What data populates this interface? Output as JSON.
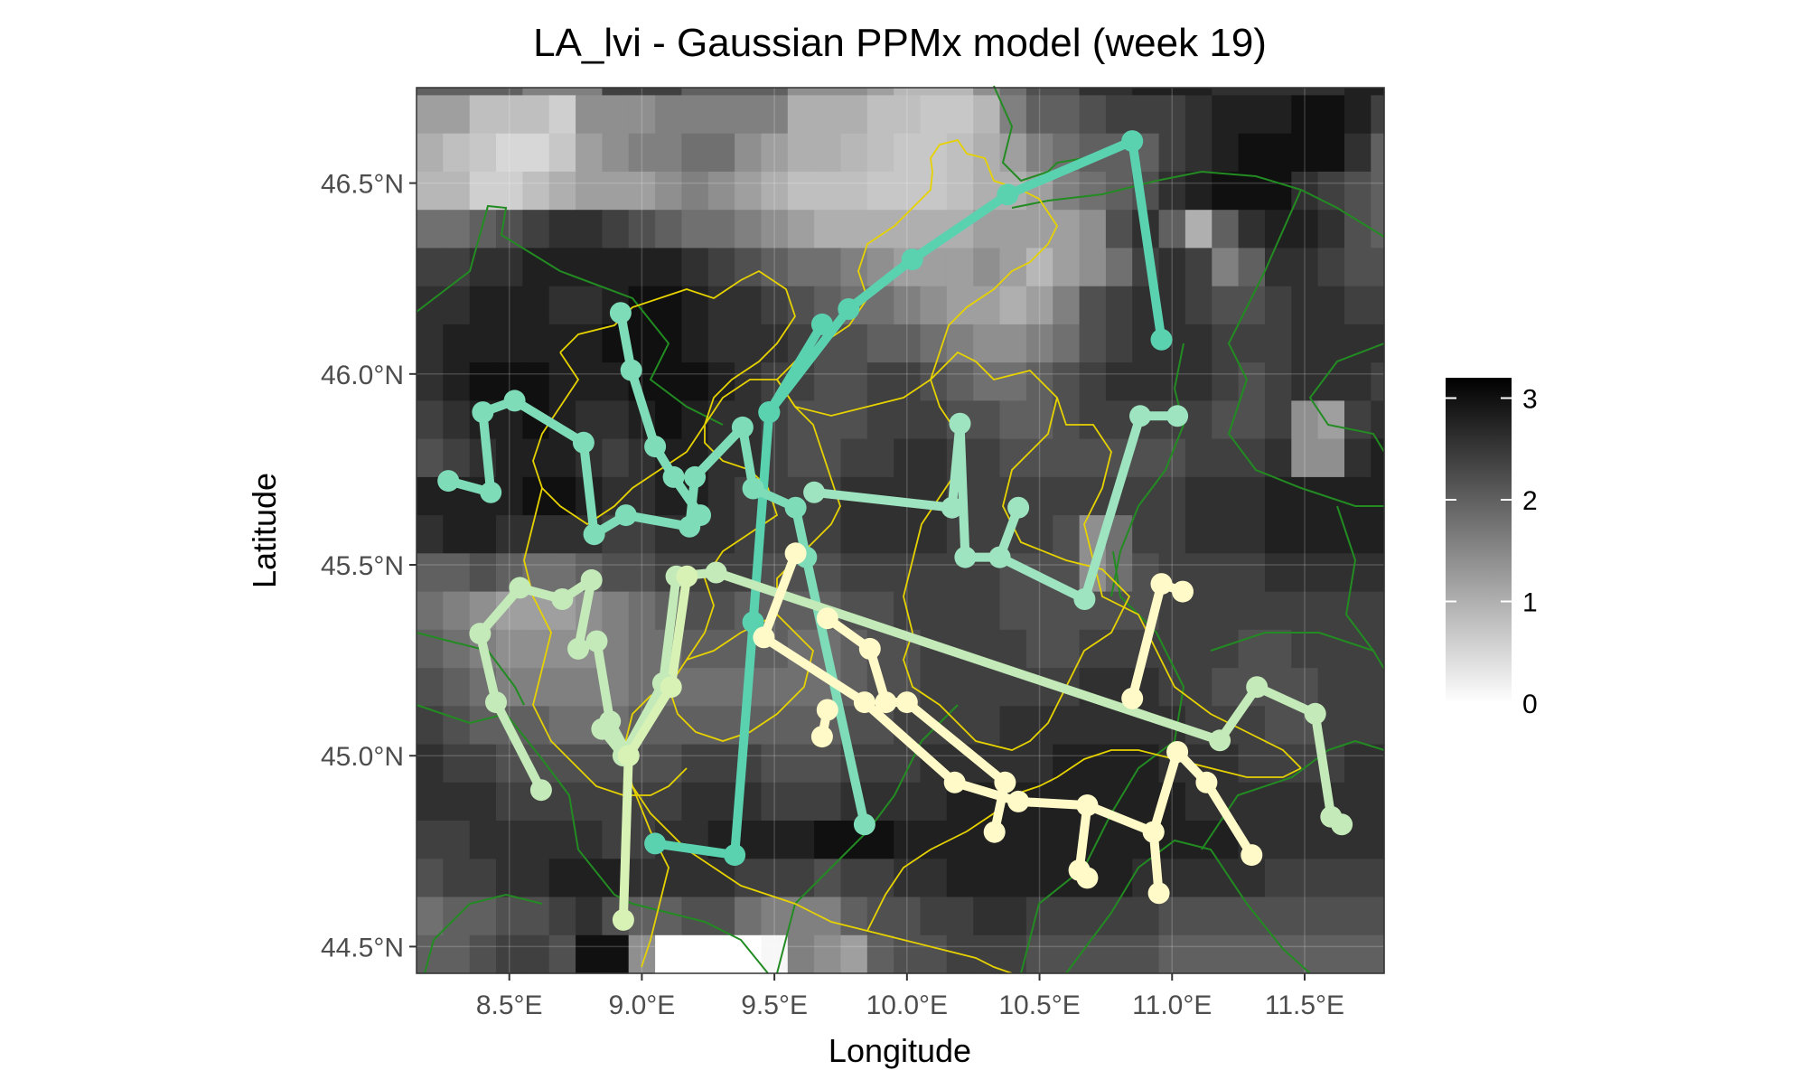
{
  "title": "LA_lvi - Gaussian PPMx model (week 19)",
  "xlabel": "Longitude",
  "ylabel": "Latitude",
  "x_ticks": [
    {
      "value": 8.5,
      "label": "8.5°E"
    },
    {
      "value": 9.0,
      "label": "9.0°E"
    },
    {
      "value": 9.5,
      "label": "9.5°E"
    },
    {
      "value": 10.0,
      "label": "10.0°E"
    },
    {
      "value": 10.5,
      "label": "10.5°E"
    },
    {
      "value": 11.0,
      "label": "11.0°E"
    },
    {
      "value": 11.5,
      "label": "11.5°E"
    }
  ],
  "y_ticks": [
    {
      "value": 44.5,
      "label": "44.5°N"
    },
    {
      "value": 45.0,
      "label": "45.0°N"
    },
    {
      "value": 45.5,
      "label": "45.5°N"
    },
    {
      "value": 46.0,
      "label": "46.0°N"
    },
    {
      "value": 46.5,
      "label": "46.5°N"
    }
  ],
  "legend": {
    "ticks": [
      {
        "value": 0,
        "label": "0"
      },
      {
        "value": 1,
        "label": "1"
      },
      {
        "value": 2,
        "label": "2"
      },
      {
        "value": 3,
        "label": "3"
      }
    ],
    "max": 3.2
  },
  "chart_data": {
    "type": "heatmap",
    "title": "LA_lvi - Gaussian PPMx model (week 19)",
    "xlabel": "Longitude",
    "ylabel": "Latitude",
    "xlim": [
      8.15,
      11.8
    ],
    "ylim": [
      44.43,
      46.75
    ],
    "grid": true,
    "legend_position": "right",
    "colorscale": {
      "low": "#ffffff",
      "high": "#000000",
      "min": 0,
      "max": 3.2
    },
    "raster": {
      "lon_start": 8.15,
      "lon_step": 0.1,
      "lat_start": 44.43,
      "lat_step": 0.1,
      "rows_north_to_south": [
        "2,2,2,2,1.6,1.6,1.6,2.4,2.4,2.4,2,2,2,2,1.4,1.4,1.4,1.2,0.9,0.9,0.9,1.4,1.8,2.2,2.2,2.6,2.6,2.8,2.8,2.8,2.6,2.6,2.6,2.6,2.6,2.8,2.8",
        "1.2,1.2,0.8,0.8,0.8,0.6,1.4,1.4,1.4,1.6,1.6,1.6,1.6,1.6,1.0,1.0,1.0,0.8,0.8,0.7,0.7,0.9,1.6,2.0,2.0,2.2,2.4,2.4,2.4,2.6,2.8,2.8,2.8,3.0,3.0,2.8,2.4",
        "1.0,0.8,0.7,0.5,0.5,0.7,1.2,1.4,1.6,1.6,1.8,1.8,1.4,1.2,1.0,1.0,0.9,0.8,0.7,0.7,0.8,1.0,1.2,1.6,1.8,2.0,2.0,2.0,2.4,2.6,2.8,3.0,3.0,3.0,3.0,2.6,2.0",
        "0.9,0.9,0.6,0.6,0.8,1.0,1.2,1.2,1.2,1.4,1.6,1.4,1.2,1.0,0.8,0.8,0.8,0.7,0.7,0.7,0.8,1.0,1.0,1.2,1.6,1.8,2.0,2.2,2.6,2.8,3.0,3.0,3.0,2.6,2.4,2.2,2.0",
        "1.8,1.8,2.0,2.2,2.4,2.6,2.6,2.4,2.2,2.0,1.8,1.8,1.6,1.4,1.2,1.0,1.0,1.0,1.0,1.0,1.0,1.2,1.2,1.2,1.2,1.4,2.2,2.6,2.0,1.0,2.0,2.6,2.8,2.8,2.6,2.2,2.0",
        "2.4,2.4,2.6,2.6,2.8,2.8,2.8,2.8,2.8,2.8,2.6,2.4,2.2,2.0,1.8,1.8,1.6,1.4,1.2,1.2,1.2,1.4,1.2,0.9,1.2,1.4,1.8,2.4,2.6,2.4,1.6,2.0,2.6,2.6,2.4,2.2,2.2",
        "2.6,2.6,2.8,2.8,2.8,2.6,2.6,2.8,3.0,3.0,2.8,2.6,2.6,2.4,2.2,2.0,1.8,1.8,1.6,1.4,1.2,1.2,1.0,1.2,1.6,2.2,2.4,2.6,2.6,2.4,2.2,2.2,2.4,2.6,2.6,2.4,2.4",
        "2.6,2.8,2.8,2.8,2.8,2.8,2.8,3.0,3.0,3.0,2.8,2.6,2.6,2.6,2.4,2.2,2.2,2.0,2.0,1.8,1.6,1.4,1.4,1.6,1.8,2.2,2.4,2.6,2.6,2.6,2.4,2.4,2.4,2.6,2.6,2.6,2.6",
        "2.6,2.8,3.0,3.0,3.0,2.8,2.8,2.8,3.0,3.0,3.0,2.8,2.6,2.4,2.4,2.2,2.2,2.4,2.4,2.2,2.0,1.8,1.8,2.0,2.2,2.4,2.6,2.6,2.6,2.6,2.4,2.2,2.4,2.6,2.6,2.6,2.4",
        "2.4,2.6,2.8,2.8,3.0,2.8,2.6,2.6,2.8,3.0,2.8,2.6,2.6,2.4,2.2,2.2,2.2,2.4,2.4,2.4,2.2,2.2,2.0,2.0,2.2,2.4,2.4,2.4,2.4,2.4,2.2,2.2,2.4,1.4,1.2,2.4,2.6",
        "2.2,2.4,2.6,2.8,2.8,2.8,2.6,2.4,2.6,2.8,2.8,2.6,2.6,2.4,2.2,2.2,2.4,2.4,2.6,2.6,2.4,2.4,2.2,2.2,2.2,2.2,2.2,2.2,2.2,2.4,2.4,2.4,2.6,1.4,1.4,2.6,2.8",
        "2.8,2.8,2.8,2.8,3.0,3.0,2.8,2.6,2.6,2.8,2.8,2.6,2.4,2.4,2.4,2.4,2.6,2.6,2.6,2.6,2.4,2.4,2.4,2.4,2.4,2.4,2.4,2.4,2.4,2.6,2.6,2.6,2.8,2.8,2.8,2.8,2.8",
        "2.6,2.8,2.8,2.6,2.6,2.6,2.6,2.4,2.4,2.6,2.6,2.6,2.4,2.4,2.4,2.4,2.6,2.6,2.6,2.6,2.4,2.4,2.4,2.4,2.2,1.4,1.8,2.4,2.4,2.6,2.6,2.6,2.8,2.8,2.8,2.8,2.8",
        "2.0,2.0,2.2,2.0,1.8,1.8,2.0,2.2,2.2,2.4,2.4,2.4,2.4,2.2,2.2,2.2,2.4,2.4,2.4,2.4,2.4,2.4,2.2,2.2,2.2,1.4,1.8,2.2,2.4,2.4,2.4,2.4,2.6,2.6,2.6,2.6,2.6",
        "1.8,1.6,1.4,1.2,1.2,1.2,1.4,1.6,1.8,2.0,2.2,2.2,2.0,2.0,2.0,2.0,2.2,2.2,2.4,2.4,2.4,2.4,2.2,2.2,2.2,2.2,2.2,2.2,2.4,2.4,2.4,2.4,2.4,2.4,2.4,2.4,2.4",
        "2.0,1.8,1.6,1.4,1.4,1.4,1.4,1.6,1.8,1.8,2.0,2.0,2.0,2.0,1.8,1.8,2.0,2.2,2.2,2.4,2.4,2.4,2.4,2.2,2.2,2.4,2.4,2.4,2.4,2.4,2.4,2.2,2.2,2.4,2.4,2.4,2.4",
        "2.2,2.0,1.8,1.6,1.6,1.6,1.6,1.6,1.8,1.8,1.8,1.8,1.8,1.8,1.8,1.8,2.0,2.2,2.2,2.4,2.4,2.4,2.4,2.4,2.4,2.6,2.6,2.6,2.4,2.4,2.2,2.2,2.2,2.2,2.4,2.4,2.4",
        "2.4,2.2,2.0,2.0,2.0,1.8,1.8,1.8,2.0,2.0,2.0,2.0,2.0,2.0,2.0,2.0,2.2,2.2,2.4,2.4,2.4,2.4,2.6,2.6,2.6,2.6,2.6,2.6,2.6,2.4,2.4,2.4,2.2,2.2,2.4,2.4,2.4",
        "2.6,2.4,2.4,2.2,2.2,2.2,2.2,2.2,2.2,2.2,2.4,2.4,2.4,2.2,2.2,2.2,2.4,2.4,2.4,2.6,2.6,2.6,2.6,2.6,2.8,2.8,2.8,2.8,2.6,2.6,2.6,2.4,2.4,2.4,2.4,2.6,2.6",
        "2.6,2.6,2.6,2.4,2.4,2.4,2.4,2.4,2.4,2.4,2.6,2.6,2.6,2.4,2.4,2.4,2.6,2.6,2.6,2.6,2.8,2.8,2.8,2.8,2.8,2.8,2.8,2.8,2.8,2.6,2.6,2.6,2.6,2.6,2.6,2.6,2.6",
        "2.4,2.4,2.6,2.6,2.6,2.6,2.6,2.4,2.4,2.6,2.6,2.8,2.8,2.8,2.8,3.0,3.0,3.0,2.8,2.8,2.8,2.8,2.8,2.8,2.8,2.8,2.8,2.8,2.8,2.8,2.8,2.6,2.6,2.6,2.6,2.6,2.6",
        "2.2,2.4,2.4,2.6,2.6,2.8,2.8,2.8,2.6,2.6,2.6,2.6,2.4,2.4,2.4,2.2,2.4,2.4,2.6,2.6,2.8,2.8,2.8,2.8,2.8,2.8,2.8,2.6,2.6,2.6,2.6,2.6,2.4,2.4,2.4,2.4,2.4",
        "1.8,2.0,2.0,2.2,2.2,2.4,2.6,2.2,2.0,2.0,2.2,2.2,1.8,1.6,1.6,1.6,2.0,2.2,2.2,2.4,2.4,2.6,2.6,2.4,2.4,2.4,2.4,2.4,2.2,2.2,2.2,2.2,2.2,2.2,2.2,2.2,2.2",
        "2.0,2.0,2.2,2.4,2.4,2.2,3.0,3.0,1.4,0.0,0.0,0.0,0.0,0.1,1.6,1.4,1.2,2.0,2.2,2.2,2.4,2.4,2.4,2.2,2.2,2.2,2.2,2.2,2.0,2.0,2.0,2.0,2.0,2.0,2.0,2.0,2.0"
      ]
    },
    "series": [
      {
        "color": "#5ad2b0",
        "points": [
          [
            9.05,
            44.77
          ],
          [
            9.35,
            44.74
          ],
          [
            9.42,
            45.35
          ],
          [
            9.48,
            45.9
          ],
          [
            9.68,
            46.13
          ]
        ]
      },
      {
        "color": "#5ad2b0",
        "points": [
          [
            9.48,
            45.9
          ],
          [
            9.78,
            46.17
          ],
          [
            10.02,
            46.3
          ],
          [
            10.38,
            46.47
          ],
          [
            10.85,
            46.61
          ],
          [
            10.96,
            46.09
          ]
        ]
      },
      {
        "color": "#7fdcb9",
        "points": [
          [
            8.27,
            45.72
          ],
          [
            8.43,
            45.69
          ],
          [
            8.4,
            45.9
          ],
          [
            8.52,
            45.93
          ],
          [
            8.78,
            45.82
          ],
          [
            8.82,
            45.58
          ],
          [
            8.94,
            45.63
          ],
          [
            9.18,
            45.6
          ],
          [
            9.2,
            45.73
          ],
          [
            9.38,
            45.86
          ],
          [
            9.42,
            45.7
          ],
          [
            9.58,
            45.65
          ],
          [
            9.62,
            45.52
          ],
          [
            9.84,
            44.82
          ]
        ]
      },
      {
        "color": "#7fdcb9",
        "points": [
          [
            8.92,
            46.16
          ],
          [
            8.96,
            46.01
          ],
          [
            9.05,
            45.81
          ],
          [
            9.12,
            45.73
          ],
          [
            9.22,
            45.63
          ]
        ]
      },
      {
        "color": "#9ee4c0",
        "points": [
          [
            9.65,
            45.69
          ],
          [
            10.17,
            45.65
          ],
          [
            10.2,
            45.87
          ],
          [
            10.22,
            45.52
          ],
          [
            10.35,
            45.52
          ],
          [
            10.42,
            45.65
          ],
          [
            10.35,
            45.52
          ],
          [
            10.67,
            45.41
          ],
          [
            10.88,
            45.89
          ],
          [
            11.02,
            45.89
          ]
        ]
      },
      {
        "color": "#c3eab8",
        "points": [
          [
            8.62,
            44.91
          ],
          [
            8.45,
            45.14
          ],
          [
            8.39,
            45.32
          ],
          [
            8.54,
            45.44
          ],
          [
            8.7,
            45.41
          ],
          [
            8.81,
            45.46
          ],
          [
            8.76,
            45.28
          ],
          [
            8.83,
            45.3
          ],
          [
            8.88,
            45.09
          ],
          [
            8.95,
            45.0
          ],
          [
            8.85,
            45.07
          ],
          [
            8.93,
            45.0
          ],
          [
            9.08,
            45.19
          ],
          [
            9.13,
            45.47
          ],
          [
            9.28,
            45.48
          ],
          [
            11.18,
            45.04
          ],
          [
            11.32,
            45.18
          ],
          [
            11.54,
            45.11
          ],
          [
            11.6,
            44.84
          ],
          [
            11.64,
            44.82
          ]
        ]
      },
      {
        "color": "#d8f2b6",
        "points": [
          [
            8.93,
            44.57
          ],
          [
            8.95,
            45.0
          ],
          [
            9.11,
            45.18
          ],
          [
            9.17,
            45.47
          ]
        ]
      },
      {
        "color": "#fffac8",
        "points": [
          [
            9.58,
            45.53
          ],
          [
            9.46,
            45.31
          ],
          [
            9.84,
            45.14
          ],
          [
            10.18,
            44.93
          ],
          [
            10.42,
            44.88
          ],
          [
            10.68,
            44.87
          ],
          [
            10.93,
            44.8
          ],
          [
            11.02,
            45.01
          ],
          [
            11.13,
            44.93
          ],
          [
            11.3,
            44.74
          ]
        ]
      },
      {
        "color": "#fffac8",
        "points": [
          [
            9.7,
            45.36
          ],
          [
            9.86,
            45.28
          ],
          [
            9.92,
            45.14
          ],
          [
            10.0,
            45.14
          ],
          [
            10.37,
            44.93
          ],
          [
            10.33,
            44.8
          ]
        ]
      },
      {
        "color": "#fffac8",
        "points": [
          [
            10.68,
            44.87
          ],
          [
            10.65,
            44.7
          ],
          [
            10.68,
            44.68
          ]
        ]
      },
      {
        "color": "#fffac8",
        "points": [
          [
            10.93,
            44.8
          ],
          [
            10.95,
            44.64
          ]
        ]
      },
      {
        "color": "#fffac8",
        "points": [
          [
            10.85,
            45.15
          ],
          [
            10.96,
            45.45
          ],
          [
            11.04,
            45.43
          ]
        ]
      },
      {
        "color": "#fffac8",
        "points": [
          [
            9.68,
            45.05
          ],
          [
            9.7,
            45.12
          ]
        ]
      }
    ]
  }
}
